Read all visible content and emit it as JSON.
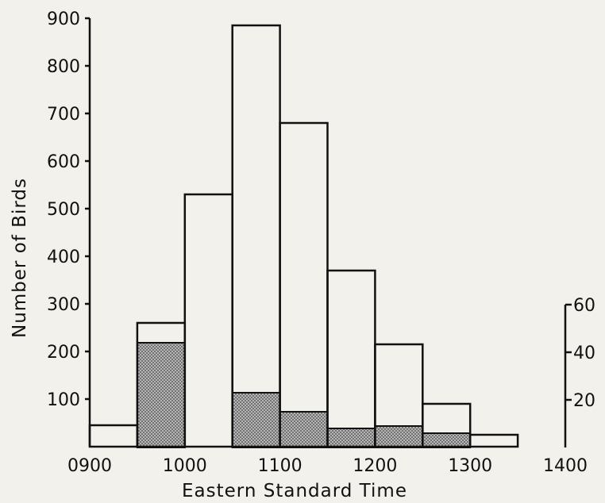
{
  "chart_data": {
    "type": "bar",
    "xlabel": "Eastern Standard Time",
    "ylabel": "Number of Birds",
    "x_ticks": [
      "0900",
      "1000",
      "1100",
      "1200",
      "1300",
      "1400"
    ],
    "x_tick_values": [
      900,
      1000,
      1100,
      1200,
      1300,
      1400
    ],
    "xlim": [
      900,
      1400
    ],
    "ylim": [
      0,
      900
    ],
    "y_ticks": [
      100,
      200,
      300,
      400,
      500,
      600,
      700,
      800,
      900
    ],
    "y_right_ticks": [
      20,
      40,
      60
    ],
    "y_right_lim": [
      0,
      180
    ],
    "grid": false,
    "bin_edges": [
      900,
      950,
      1000,
      1050,
      1100,
      1150,
      1200,
      1250,
      1300,
      1350
    ],
    "series": [
      {
        "style": "outline",
        "axis": "left",
        "values": [
          45,
          260,
          530,
          885,
          680,
          370,
          215,
          90,
          25
        ]
      },
      {
        "style": "stippled",
        "axis": "right",
        "values": [
          0,
          44,
          0,
          23,
          15,
          8,
          9,
          6,
          0
        ]
      }
    ],
    "colors": {
      "ink": "#111111",
      "stipple": "#8f8f8f",
      "background": "#f3f1ec"
    }
  }
}
